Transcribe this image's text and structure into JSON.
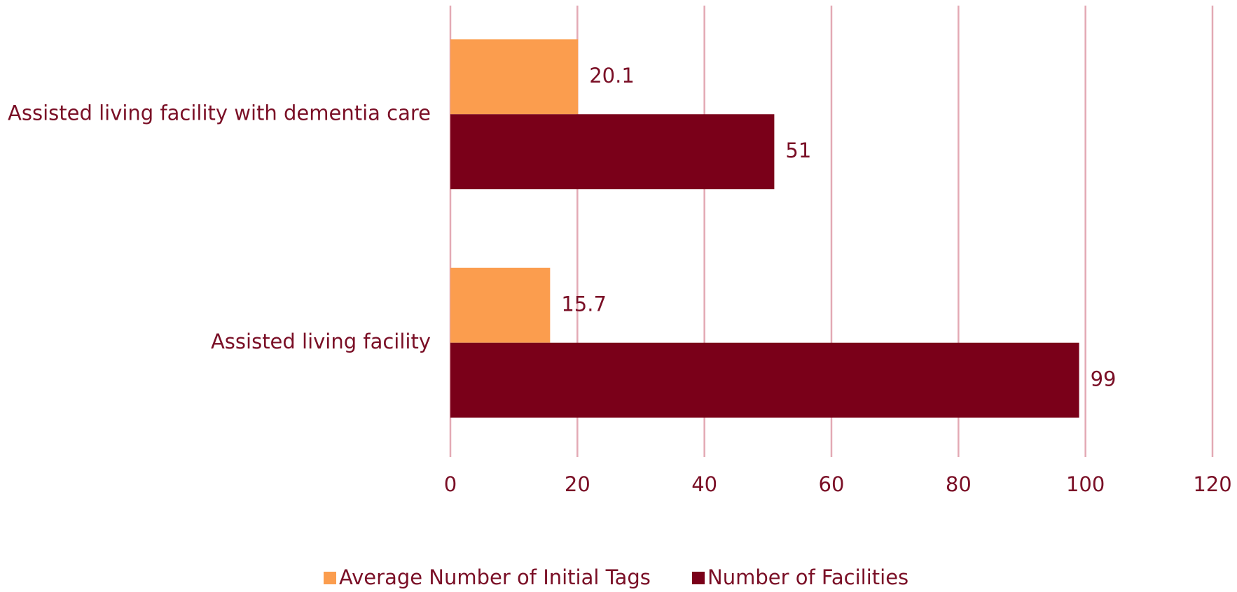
{
  "chart_data": {
    "type": "barh",
    "categories": [
      "Assisted living facility with dementia care",
      "Assisted living facility"
    ],
    "series": [
      {
        "name": "Average Number of Initial Tags",
        "color": "#fb9d4e",
        "values": [
          20.1,
          15.7
        ]
      },
      {
        "name": "Number of Facilities",
        "color": "#7a0019",
        "values": [
          51,
          99
        ]
      }
    ],
    "xlim": [
      0,
      120
    ],
    "xticks": [
      0,
      20,
      40,
      60,
      80,
      100,
      120
    ],
    "grid": true,
    "legend": "bottom"
  }
}
